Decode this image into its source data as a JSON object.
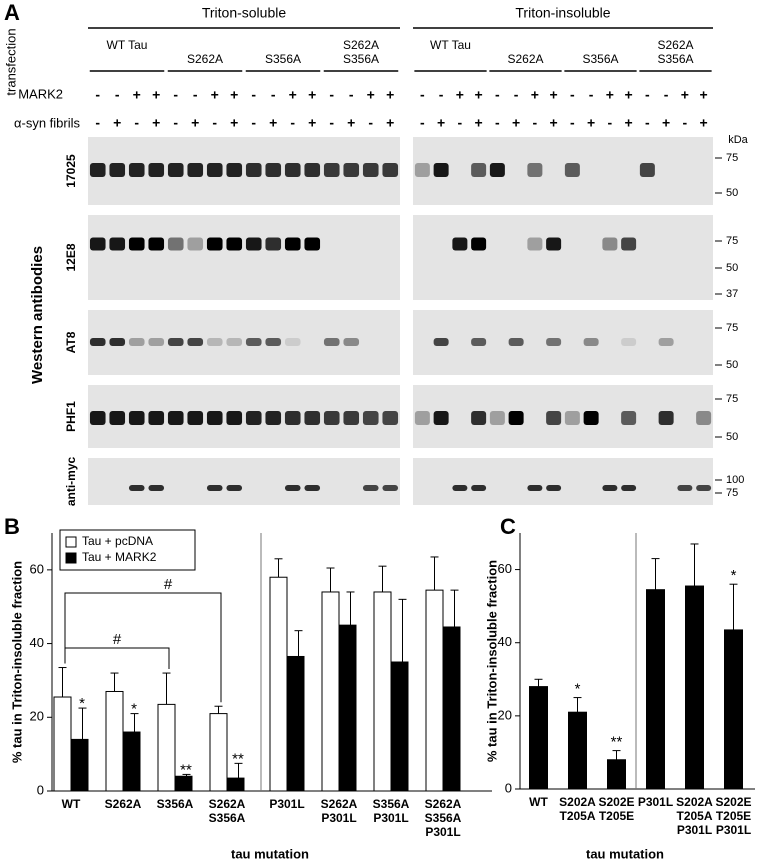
{
  "panel_a": {
    "label": "A",
    "fractions": [
      "Triton-soluble",
      "Triton-insoluble"
    ],
    "transfection_label": "transfection",
    "groups": [
      "WT Tau",
      "S262A",
      "S356A",
      "S262A S356A"
    ],
    "mark2_label": "MARK2",
    "fibrils_label": "α-syn fibrils",
    "mark2_signs": [
      "-",
      "-",
      "+",
      "+"
    ],
    "fibril_signs": [
      "-",
      "+",
      "-",
      "+"
    ],
    "antibodies_label": "Western antibodies",
    "antibodies": [
      "17025",
      "12E8",
      "AT8",
      "PHF1",
      "anti-myc"
    ],
    "kda_label": "kDa",
    "markers": [
      [
        "75",
        "50"
      ],
      [
        "75",
        "50",
        "37"
      ],
      [
        "75",
        "50"
      ],
      [
        "75",
        "50"
      ],
      [
        "100",
        "75"
      ]
    ]
  },
  "chart_data": [
    {
      "type": "bar",
      "panel_label": "B",
      "ylabel": "% tau in Triton-insoluble fraction",
      "xlabel": "tau mutation",
      "categories": [
        "WT",
        "S262A",
        "S356A",
        "S262A S356A",
        "P301L",
        "S262A P301L",
        "S356A P301L",
        "S262A S356A P301L"
      ],
      "series": [
        {
          "name": "Tau + pcDNA",
          "color": "#ffffff",
          "values": [
            25.5,
            27,
            23.5,
            21,
            58,
            54,
            54,
            54.5
          ],
          "errors": [
            8,
            5,
            8.5,
            2,
            5,
            6.5,
            7,
            9
          ]
        },
        {
          "name": "Tau + MARK2",
          "color": "#000000",
          "values": [
            14,
            16,
            4,
            3.5,
            36.5,
            45,
            35,
            44.5
          ],
          "errors": [
            8.5,
            5,
            0.5,
            4,
            7,
            9,
            17,
            10
          ]
        }
      ],
      "annotations": [
        "*",
        "*",
        "**",
        "**",
        "#",
        "#"
      ],
      "ylim": [
        0,
        70
      ],
      "yticks": [
        0,
        20,
        40,
        60
      ]
    },
    {
      "type": "bar",
      "panel_label": "C",
      "ylabel": "% tau in Triton-insoluble fraction",
      "xlabel": "tau mutation",
      "categories": [
        "WT",
        "S202A T205A",
        "S202E T205E",
        "P301L",
        "S202A T205A P301L",
        "S202E T205E P301L"
      ],
      "color": "#000000",
      "values": [
        28,
        21,
        8,
        54.5,
        55.5,
        43.5
      ],
      "errors": [
        2,
        4,
        2.5,
        8.5,
        11.5,
        12.5
      ],
      "annotations": [
        "*",
        "**",
        "*"
      ],
      "ylim": [
        0,
        70
      ],
      "yticks": [
        0,
        20,
        40,
        60
      ]
    }
  ]
}
